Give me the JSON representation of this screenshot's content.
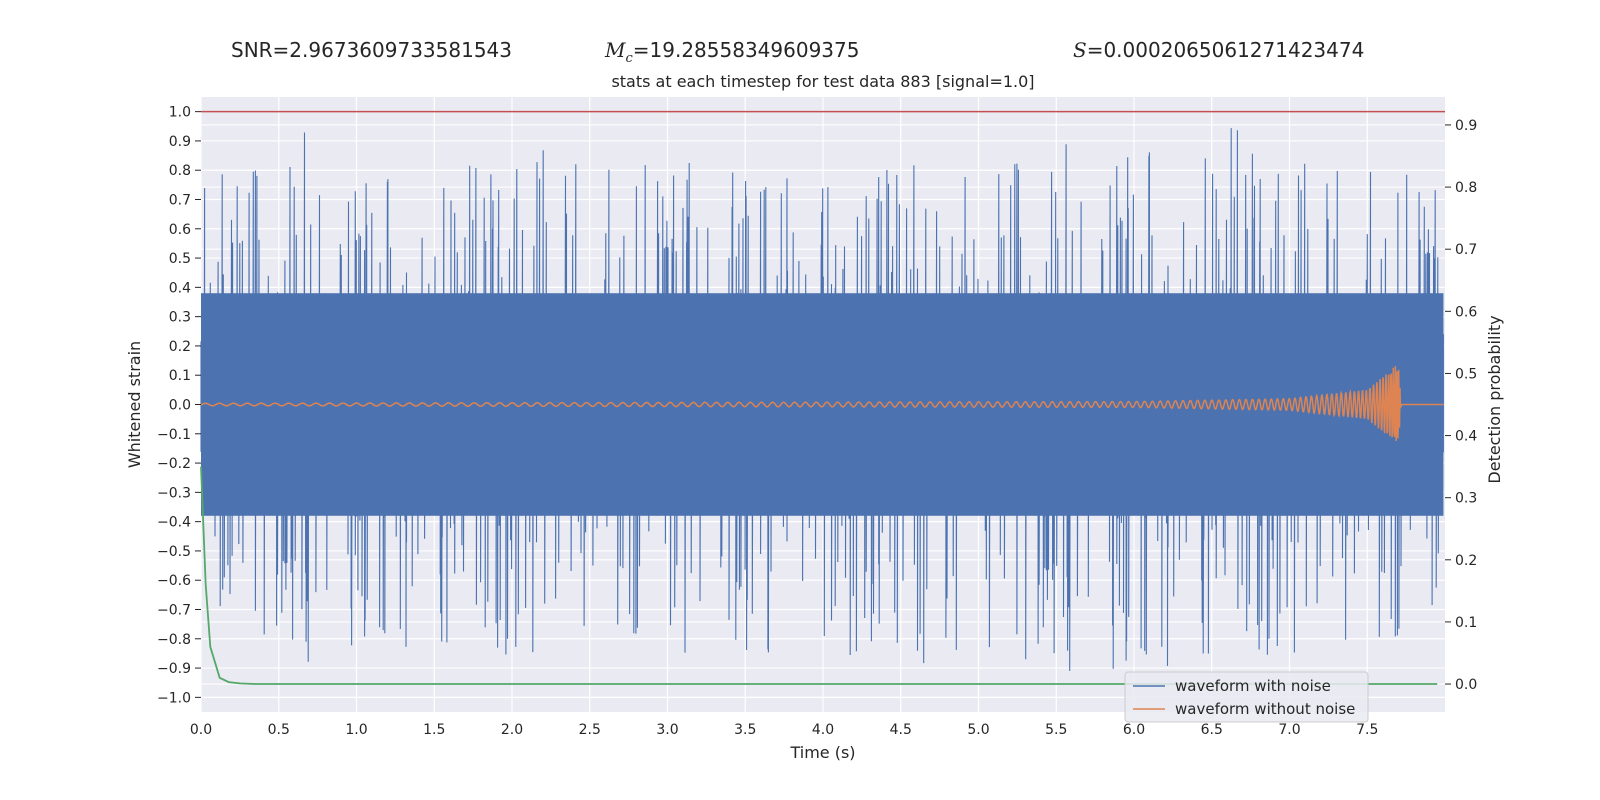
{
  "stats": {
    "snr_text": "SNR=2.9673609733581543",
    "mc_symbol": "M",
    "mc_sub": "c",
    "mc_value": "=19.28558349609375",
    "s_symbol": "S",
    "s_value": "=0.0002065061271423474"
  },
  "chart_data": {
    "type": "line",
    "title": "stats at each timestep for test data 883 [signal=1.0]",
    "xlabel": "Time (s)",
    "ylabel": "Whitened strain",
    "y2label": "Detection probability",
    "xlim": [
      0.0,
      8.0
    ],
    "ylim": [
      -1.05,
      1.05
    ],
    "y2lim": [
      -0.045,
      0.945
    ],
    "x_ticks": [
      "0.0",
      "0.5",
      "1.0",
      "1.5",
      "2.0",
      "2.5",
      "3.0",
      "3.5",
      "4.0",
      "4.5",
      "5.0",
      "5.5",
      "6.0",
      "6.5",
      "7.0",
      "7.5"
    ],
    "y_ticks": [
      "1.0",
      "0.9",
      "0.8",
      "0.7",
      "0.6",
      "0.5",
      "0.4",
      "0.3",
      "0.2",
      "0.1",
      "0.0",
      "−0.1",
      "−0.2",
      "−0.3",
      "−0.4",
      "−0.5",
      "−0.6",
      "−0.7",
      "−0.8",
      "−0.9",
      "−1.0"
    ],
    "y2_ticks": [
      "0.9",
      "0.8",
      "0.7",
      "0.6",
      "0.5",
      "0.4",
      "0.3",
      "0.2",
      "0.1",
      "0.0"
    ],
    "grid": true,
    "legend_position": "lower-right",
    "series": [
      {
        "name": "waveform with noise",
        "color": "#4c72b0",
        "description_values": "dense noise, mostly within ±0.45, peaks up to 1.0",
        "envelope": {
          "x": [
            0.0,
            0.73,
            1.0,
            2.0,
            3.0,
            4.0,
            5.0,
            6.0,
            6.67,
            7.0,
            7.5,
            7.95
          ],
          "upper": [
            0.82,
            0.95,
            0.78,
            0.88,
            0.84,
            0.8,
            0.92,
            0.88,
            1.0,
            0.82,
            0.85,
            0.78
          ],
          "lower": [
            -0.7,
            -0.9,
            -0.85,
            -0.91,
            -0.85,
            -0.9,
            -0.88,
            -0.95,
            -0.92,
            -0.9,
            -0.96,
            -0.75
          ]
        }
      },
      {
        "name": "waveform without noise",
        "color": "#dd8452",
        "axis": "left",
        "x": [
          0.0,
          6.0,
          7.0,
          7.5,
          7.7,
          7.72,
          8.0
        ],
        "amplitude": [
          0.004,
          0.01,
          0.02,
          0.05,
          0.14,
          0.0,
          0.0
        ]
      },
      {
        "name": "detection probability",
        "color": "#55a868",
        "axis": "right",
        "x": [
          0.0,
          0.03,
          0.06,
          0.12,
          0.18,
          0.25,
          0.35,
          0.5,
          1.0,
          7.95
        ],
        "y": [
          0.35,
          0.16,
          0.06,
          0.01,
          0.003,
          0.001,
          0.0,
          0.0,
          0.0,
          0.0
        ]
      }
    ],
    "hline": {
      "y": 1.0,
      "color": "#c44e52"
    }
  }
}
